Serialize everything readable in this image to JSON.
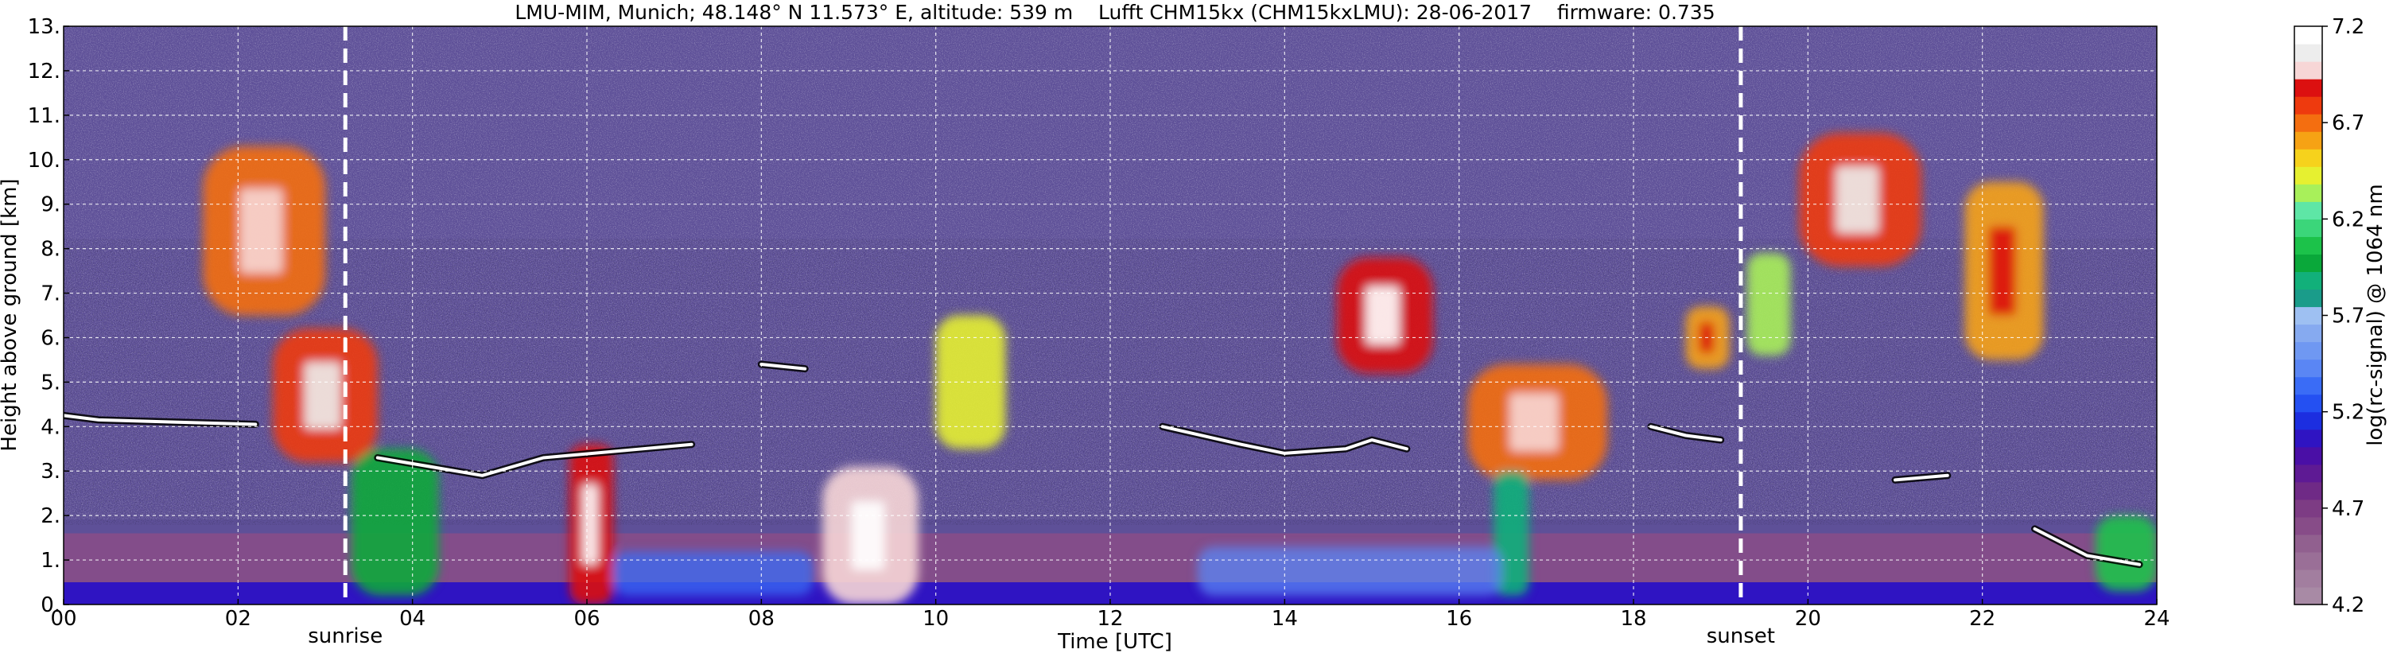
{
  "chart_data": {
    "type": "heatmap",
    "title": "LMU-MIM, Munich; 48.148° N 11.573° E, altitude: 539 m    Lufft CHM15kx (CHM15kxLMU): 28-06-2017    firmware: 0.735",
    "xlabel": "Time [UTC]",
    "ylabel": "Height above ground [km]",
    "xlim": [
      0,
      24
    ],
    "ylim": [
      0,
      13
    ],
    "x_ticks": [
      0,
      2,
      4,
      6,
      8,
      10,
      12,
      14,
      16,
      18,
      20,
      22,
      24
    ],
    "x_tick_labels": [
      "00",
      "02",
      "04",
      "06",
      "08",
      "10",
      "12",
      "14",
      "16",
      "18",
      "20",
      "22",
      "24"
    ],
    "y_ticks": [
      0,
      1,
      2,
      3,
      4,
      5,
      6,
      7,
      8,
      9,
      10,
      11,
      12,
      13
    ],
    "y_tick_labels": [
      "0.",
      "1.",
      "2.",
      "3.",
      "4.",
      "5.",
      "6.",
      "7.",
      "8.",
      "9.",
      "10.",
      "11.",
      "12.",
      "13."
    ],
    "grid": true,
    "events": [
      {
        "label": "sunrise",
        "time": 3.23
      },
      {
        "label": "sunset",
        "time": 19.23
      }
    ],
    "colorbar": {
      "label": "log(rc-signal) @ 1064 nm",
      "range": [
        4.2,
        7.2
      ],
      "ticks": [
        4.2,
        4.7,
        5.2,
        5.7,
        6.2,
        6.7,
        7.2
      ],
      "tick_labels": [
        "4.2",
        "4.7",
        "5.2",
        "5.7",
        "6.2",
        "6.7",
        "7.2"
      ],
      "colors": [
        "#a88aa5",
        "#a27e9f",
        "#9a6f97",
        "#91608f",
        "#874c88",
        "#7d3c84",
        "#6f2a86",
        "#5e1a94",
        "#4a0fa6",
        "#2f14c2",
        "#1c2ee0",
        "#2450f2",
        "#3a6cf6",
        "#5a86f4",
        "#6f98f2",
        "#86aaf0",
        "#9ec0f2",
        "#1a9c8a",
        "#12b07a",
        "#0aa83a",
        "#1cc24a",
        "#3bd67a",
        "#5ee6a6",
        "#a8f05a",
        "#e6f030",
        "#f6d21c",
        "#f6a214",
        "#f46e10",
        "#ee3a0e",
        "#dc1010",
        "#f7d6d6",
        "#ededed",
        "#ffffff"
      ]
    },
    "background_levels": [
      {
        "band": "near-surface layer 0-0.5 km",
        "value": 5.1
      },
      {
        "band": "boundary layer 0.5-1.6 km",
        "value": 4.6
      },
      {
        "band": "free troposphere (noise)",
        "value": 4.9
      }
    ],
    "features": [
      {
        "kind": "cloud",
        "t_start": 1.6,
        "t_end": 3.0,
        "h_bottom": 6.5,
        "h_top": 10.3,
        "value": 6.7
      },
      {
        "kind": "cloud",
        "t_start": 2.4,
        "t_end": 3.6,
        "h_bottom": 3.2,
        "h_top": 6.2,
        "value": 6.8
      },
      {
        "kind": "cloud",
        "t_start": 3.3,
        "t_end": 4.3,
        "h_bottom": 0.2,
        "h_top": 3.5,
        "value": 6.0
      },
      {
        "kind": "cloud",
        "t_start": 5.8,
        "t_end": 6.3,
        "h_bottom": 0.0,
        "h_top": 3.6,
        "value": 6.9
      },
      {
        "kind": "cloud",
        "t_start": 8.7,
        "t_end": 9.8,
        "h_bottom": 0.0,
        "h_top": 3.1,
        "value": 7.0
      },
      {
        "kind": "cloud",
        "t_start": 10.0,
        "t_end": 10.8,
        "h_bottom": 3.5,
        "h_top": 6.5,
        "value": 6.4
      },
      {
        "kind": "cloud",
        "t_start": 14.6,
        "t_end": 15.7,
        "h_bottom": 5.2,
        "h_top": 7.8,
        "value": 6.9
      },
      {
        "kind": "cloud",
        "t_start": 16.1,
        "t_end": 17.7,
        "h_bottom": 2.8,
        "h_top": 5.4,
        "value": 6.7
      },
      {
        "kind": "cloud",
        "t_start": 16.4,
        "t_end": 16.8,
        "h_bottom": 0.2,
        "h_top": 3.0,
        "value": 5.9
      },
      {
        "kind": "cloud",
        "t_start": 18.6,
        "t_end": 19.1,
        "h_bottom": 5.3,
        "h_top": 6.7,
        "value": 6.6
      },
      {
        "kind": "cloud",
        "t_start": 19.3,
        "t_end": 19.8,
        "h_bottom": 5.6,
        "h_top": 7.9,
        "value": 6.3
      },
      {
        "kind": "cloud",
        "t_start": 19.9,
        "t_end": 21.3,
        "h_bottom": 7.6,
        "h_top": 10.6,
        "value": 6.8
      },
      {
        "kind": "cloud",
        "t_start": 21.8,
        "t_end": 22.7,
        "h_bottom": 5.5,
        "h_top": 9.5,
        "value": 6.6
      },
      {
        "kind": "cloud",
        "t_start": 23.3,
        "t_end": 24.0,
        "h_bottom": 0.3,
        "h_top": 2.0,
        "value": 6.1
      },
      {
        "kind": "aerosol",
        "t_start": 13.0,
        "t_end": 16.5,
        "h_bottom": 0.2,
        "h_top": 1.3,
        "value": 5.4
      },
      {
        "kind": "aerosol",
        "t_start": 6.3,
        "t_end": 8.6,
        "h_bottom": 0.2,
        "h_top": 1.2,
        "value": 5.3
      }
    ],
    "layer_top_traces": [
      {
        "points": [
          [
            0.0,
            4.25
          ],
          [
            0.4,
            4.15
          ],
          [
            1.3,
            4.1
          ],
          [
            2.2,
            4.05
          ]
        ]
      },
      {
        "points": [
          [
            3.6,
            3.3
          ],
          [
            4.2,
            3.1
          ],
          [
            4.8,
            2.9
          ],
          [
            5.5,
            3.3
          ],
          [
            7.2,
            3.6
          ]
        ]
      },
      {
        "points": [
          [
            8.0,
            5.4
          ],
          [
            8.5,
            5.3
          ]
        ]
      },
      {
        "points": [
          [
            12.6,
            4.0
          ],
          [
            13.5,
            3.6
          ],
          [
            14.0,
            3.4
          ],
          [
            14.7,
            3.5
          ],
          [
            15.0,
            3.7
          ],
          [
            15.4,
            3.5
          ]
        ]
      },
      {
        "points": [
          [
            18.2,
            4.0
          ],
          [
            18.6,
            3.8
          ],
          [
            19.0,
            3.7
          ]
        ]
      },
      {
        "points": [
          [
            21.0,
            2.8
          ],
          [
            21.6,
            2.9
          ]
        ]
      },
      {
        "points": [
          [
            22.6,
            1.7
          ],
          [
            23.2,
            1.1
          ],
          [
            23.8,
            0.9
          ]
        ]
      }
    ]
  }
}
